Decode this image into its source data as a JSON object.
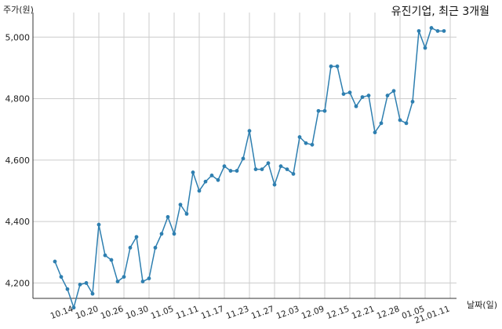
{
  "chart_data": {
    "type": "line",
    "title": "유진기업, 최근 3개월",
    "xlabel": "날짜(일)",
    "ylabel": "주가(원)",
    "ylim": [
      4150,
      5080
    ],
    "grid": true,
    "y_ticks": [
      4200,
      4400,
      4600,
      4800,
      5000
    ],
    "y_tick_labels": [
      "4,200",
      "4,400",
      "4,600",
      "4,800",
      "5,000"
    ],
    "x_ticks": [
      {
        "label": "10.14",
        "index": 3
      },
      {
        "label": "10.20",
        "index": 7
      },
      {
        "label": "10.26",
        "index": 11
      },
      {
        "label": "10.30",
        "index": 15
      },
      {
        "label": "11.05",
        "index": 19
      },
      {
        "label": "11.11",
        "index": 23
      },
      {
        "label": "11.17",
        "index": 27
      },
      {
        "label": "11.23",
        "index": 31
      },
      {
        "label": "11.27",
        "index": 35
      },
      {
        "label": "12.03",
        "index": 39
      },
      {
        "label": "12.09",
        "index": 43
      },
      {
        "label": "12.15",
        "index": 47
      },
      {
        "label": "12.21",
        "index": 51
      },
      {
        "label": "12.28",
        "index": 55
      },
      {
        "label": "01.05",
        "index": 59
      },
      {
        "label": "21.01.11",
        "index": 63
      }
    ],
    "series": [
      {
        "values": [
          4270,
          4220,
          4180,
          4120,
          4195,
          4200,
          4165,
          4390,
          4290,
          4275,
          4205,
          4220,
          4315,
          4350,
          4205,
          4215,
          4315,
          4360,
          4415,
          4360,
          4455,
          4425,
          4560,
          4500,
          4530,
          4550,
          4535,
          4580,
          4565,
          4565,
          4605,
          4695,
          4570,
          4570,
          4590,
          4520,
          4580,
          4570,
          4555,
          4675,
          4655,
          4650,
          4760,
          4760,
          4905,
          4905,
          4815,
          4820,
          4775,
          4805,
          4810,
          4690,
          4720,
          4810,
          4825,
          4730,
          4720,
          4790,
          5020,
          4965,
          5030,
          5020,
          5020
        ]
      }
    ]
  },
  "colors": {
    "line": "#2e7fb0",
    "grid": "#cccccc",
    "axis": "#333333"
  }
}
